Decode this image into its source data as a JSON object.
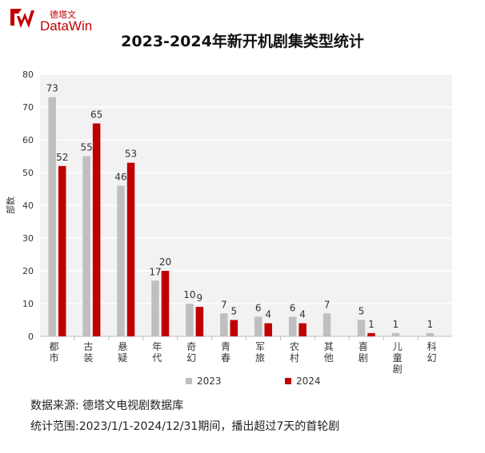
{
  "brand": {
    "name_cn": "德塔文",
    "name_en": "DataWin",
    "color": "#c00000"
  },
  "chart_data": {
    "type": "bar",
    "title": "2023-2024年新开机剧集类型统计",
    "ylabel": "部数",
    "xlabel": "",
    "ylim": [
      0,
      80
    ],
    "yticks": [
      0,
      10,
      20,
      30,
      40,
      50,
      60,
      70,
      80
    ],
    "grid": true,
    "legend_position": "bottom",
    "categories": [
      "都市",
      "古装",
      "悬疑",
      "年代",
      "奇幻",
      "青春",
      "军旅",
      "农村",
      "其他",
      "喜剧",
      "儿童剧",
      "科幻"
    ],
    "series": [
      {
        "name": "2023",
        "color": "#bfbfbf",
        "values": [
          73,
          55,
          46,
          17,
          10,
          7,
          6,
          6,
          7,
          5,
          1,
          1
        ]
      },
      {
        "name": "2024",
        "color": "#c00000",
        "values": [
          52,
          65,
          53,
          20,
          9,
          5,
          4,
          4,
          null,
          1,
          null,
          null
        ]
      }
    ]
  },
  "footer": {
    "source": "数据来源: 德塔文电视剧数据库",
    "range": "统计范围:2023/1/1-2024/12/31期间，播出超过7天的首轮剧"
  }
}
